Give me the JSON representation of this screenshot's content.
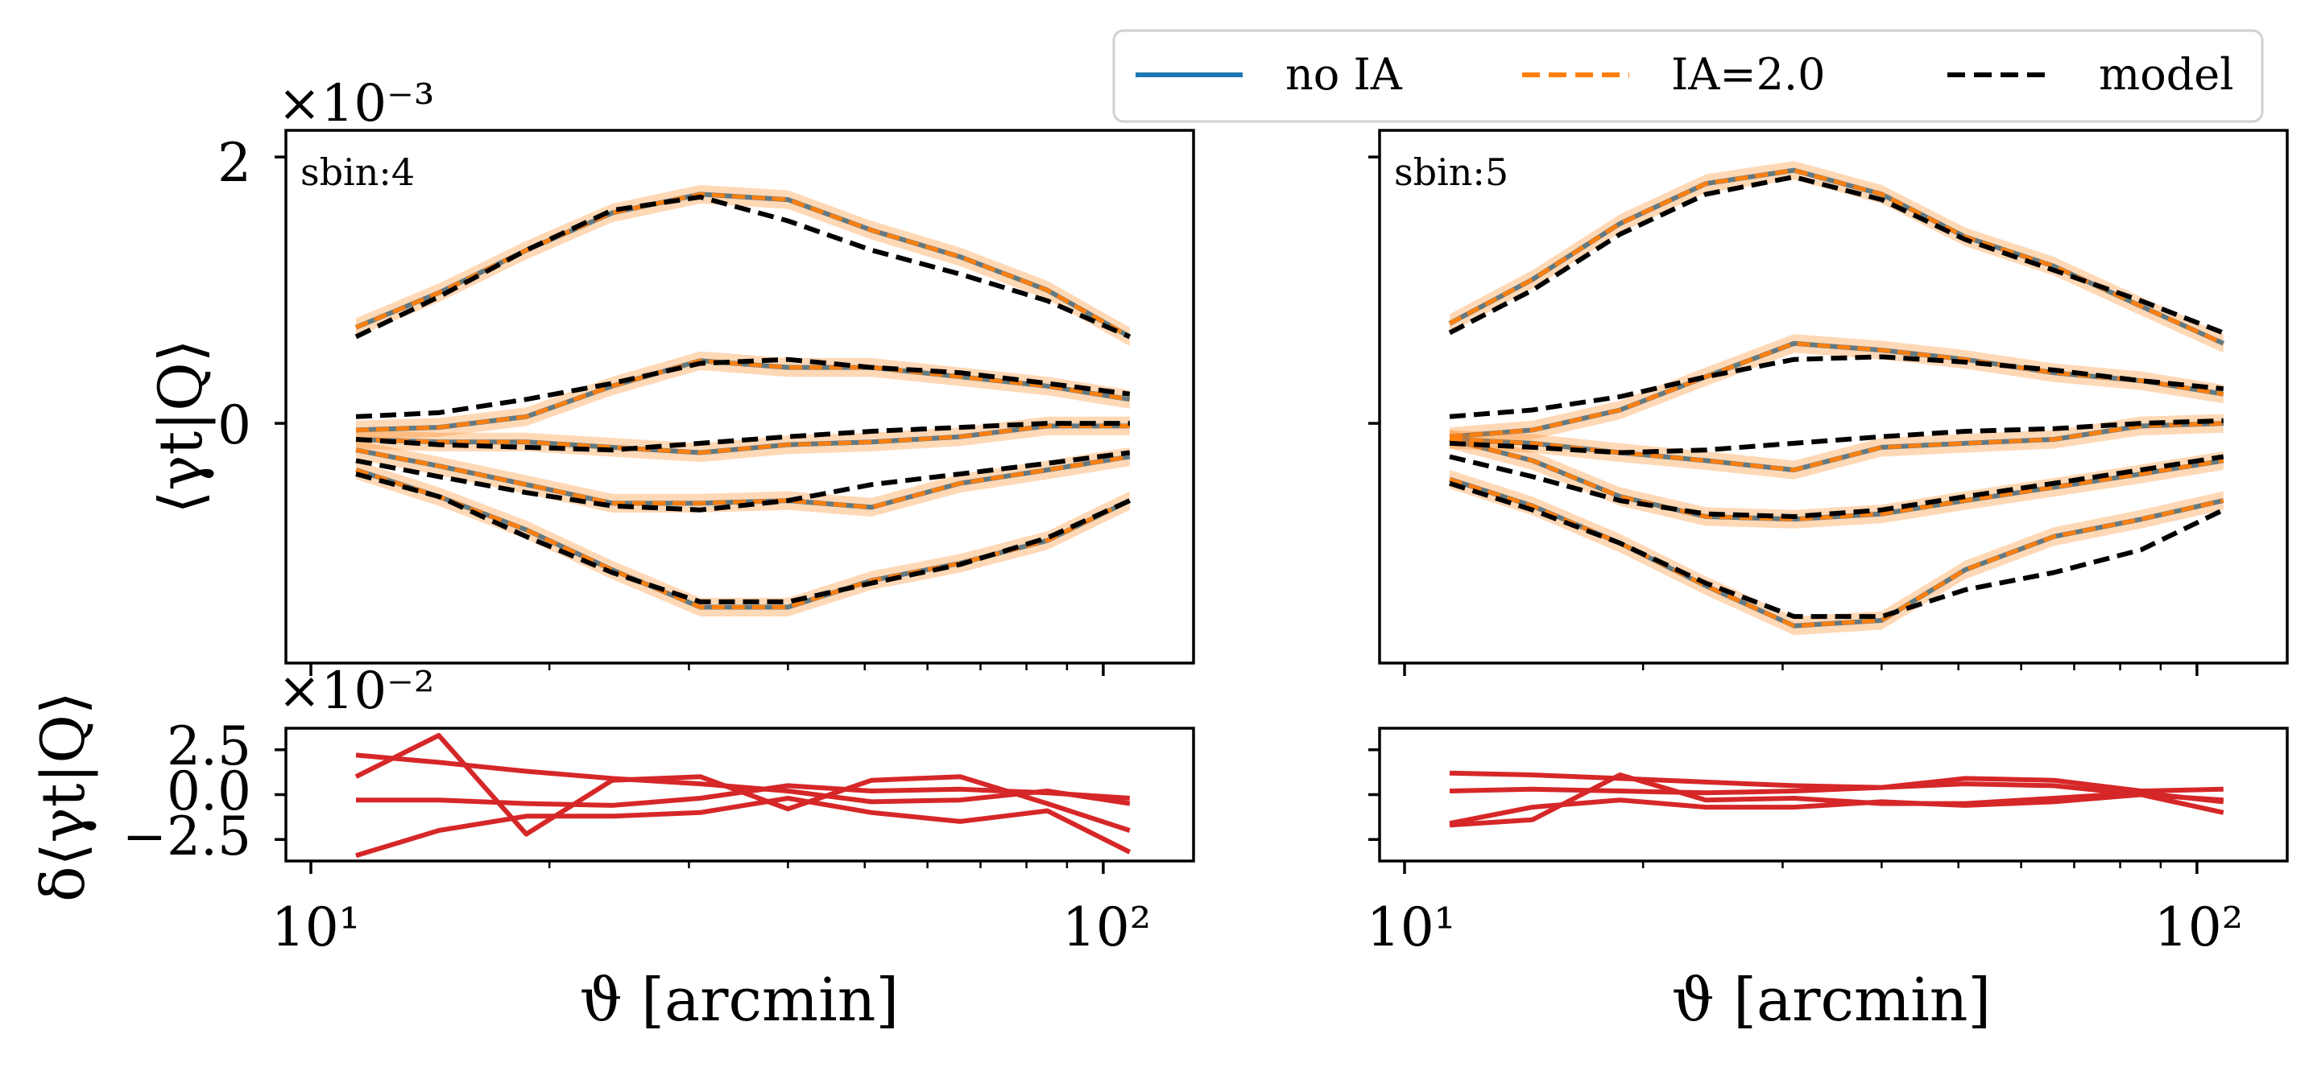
{
  "legend": {
    "entries": [
      {
        "label": "no IA",
        "color": "#1f77b4",
        "style": "solid"
      },
      {
        "label": "IA=2.0",
        "color": "#ff7f0e",
        "style": "dashed"
      },
      {
        "label": "model",
        "color": "#000000",
        "style": "dashed"
      }
    ]
  },
  "labels": {
    "ylabel_top": "⟨γt|Q⟩",
    "ylabel_bottom": "δ⟨γt|Q⟩",
    "xlabel": "ϑ [arcmin]",
    "mult_top": "×10⁻³",
    "mult_bottom": "×10⁻²",
    "x_tick_10": "10¹",
    "x_tick_100": "10²",
    "y_tick_2": "2",
    "y_tick_0": "0",
    "res_tick_p": "2.5",
    "res_tick_0": "0.0",
    "res_tick_m": "−2.5"
  },
  "chart_data": [
    {
      "type": "line",
      "panel": "sbin:4",
      "title": "sbin:4",
      "xscale": "log",
      "xlim": [
        9.3,
        130
      ],
      "ylim": [
        -1.8,
        2.2
      ],
      "x": [
        11.4,
        14.5,
        18.7,
        24,
        31,
        40,
        51,
        66,
        85,
        108
      ],
      "series": [
        {
          "name": "no IA",
          "values": [
            [
              0.72,
              0.98,
              1.3,
              1.58,
              1.72,
              1.68,
              1.45,
              1.25,
              1.0,
              0.65
            ],
            [
              -0.05,
              -0.03,
              0.05,
              0.28,
              0.47,
              0.42,
              0.42,
              0.35,
              0.28,
              0.18
            ],
            [
              -0.12,
              -0.14,
              -0.14,
              -0.18,
              -0.22,
              -0.16,
              -0.14,
              -0.1,
              -0.02,
              -0.02
            ],
            [
              -0.2,
              -0.32,
              -0.46,
              -0.6,
              -0.6,
              -0.58,
              -0.63,
              -0.45,
              -0.35,
              -0.25
            ],
            [
              -0.35,
              -0.55,
              -0.8,
              -1.1,
              -1.38,
              -1.38,
              -1.18,
              -1.05,
              -0.88,
              -0.58
            ]
          ]
        },
        {
          "name": "IA=2.0",
          "band": 0.07,
          "values": [
            [
              0.72,
              0.98,
              1.3,
              1.58,
              1.72,
              1.68,
              1.45,
              1.25,
              1.0,
              0.65
            ],
            [
              -0.05,
              -0.03,
              0.05,
              0.28,
              0.47,
              0.42,
              0.42,
              0.35,
              0.28,
              0.18
            ],
            [
              -0.12,
              -0.14,
              -0.14,
              -0.18,
              -0.22,
              -0.16,
              -0.14,
              -0.1,
              -0.02,
              -0.02
            ],
            [
              -0.2,
              -0.32,
              -0.46,
              -0.6,
              -0.6,
              -0.58,
              -0.63,
              -0.45,
              -0.35,
              -0.25
            ],
            [
              -0.35,
              -0.55,
              -0.8,
              -1.1,
              -1.38,
              -1.38,
              -1.18,
              -1.05,
              -0.88,
              -0.58
            ]
          ]
        },
        {
          "name": "model",
          "values": [
            [
              0.65,
              0.95,
              1.3,
              1.6,
              1.7,
              1.52,
              1.3,
              1.12,
              0.92,
              0.65
            ],
            [
              0.05,
              0.08,
              0.18,
              0.3,
              0.45,
              0.48,
              0.42,
              0.38,
              0.3,
              0.22
            ],
            [
              -0.12,
              -0.16,
              -0.18,
              -0.2,
              -0.15,
              -0.1,
              -0.06,
              -0.03,
              0.0,
              0.0
            ],
            [
              -0.28,
              -0.4,
              -0.52,
              -0.62,
              -0.65,
              -0.58,
              -0.46,
              -0.38,
              -0.3,
              -0.22
            ],
            [
              -0.38,
              -0.55,
              -0.85,
              -1.12,
              -1.34,
              -1.34,
              -1.2,
              -1.06,
              -0.86,
              -0.58
            ]
          ]
        }
      ]
    },
    {
      "type": "line",
      "panel": "sbin:5",
      "title": "sbin:5",
      "xscale": "log",
      "xlim": [
        9.3,
        130
      ],
      "ylim": [
        -1.8,
        2.2
      ],
      "x": [
        11.4,
        14.5,
        18.7,
        24,
        31,
        40,
        51,
        66,
        85,
        108
      ],
      "series": [
        {
          "name": "no IA",
          "values": [
            [
              0.75,
              1.08,
              1.5,
              1.8,
              1.9,
              1.72,
              1.4,
              1.18,
              0.88,
              0.6
            ],
            [
              -0.1,
              -0.05,
              0.1,
              0.35,
              0.6,
              0.55,
              0.48,
              0.38,
              0.32,
              0.22
            ],
            [
              -0.12,
              -0.15,
              -0.22,
              -0.28,
              -0.35,
              -0.18,
              -0.15,
              -0.12,
              -0.02,
              0.0
            ],
            [
              -0.12,
              -0.28,
              -0.55,
              -0.7,
              -0.72,
              -0.68,
              -0.58,
              -0.48,
              -0.38,
              -0.28
            ],
            [
              -0.42,
              -0.62,
              -0.9,
              -1.22,
              -1.52,
              -1.48,
              -1.1,
              -0.85,
              -0.72,
              -0.58
            ]
          ]
        },
        {
          "name": "IA=2.0",
          "band": 0.07,
          "values": [
            [
              0.75,
              1.08,
              1.5,
              1.8,
              1.9,
              1.72,
              1.4,
              1.18,
              0.88,
              0.6
            ],
            [
              -0.1,
              -0.05,
              0.1,
              0.35,
              0.6,
              0.55,
              0.48,
              0.38,
              0.32,
              0.22
            ],
            [
              -0.12,
              -0.15,
              -0.22,
              -0.28,
              -0.35,
              -0.18,
              -0.15,
              -0.12,
              -0.02,
              0.0
            ],
            [
              -0.12,
              -0.28,
              -0.55,
              -0.7,
              -0.72,
              -0.68,
              -0.58,
              -0.48,
              -0.38,
              -0.28
            ],
            [
              -0.42,
              -0.62,
              -0.9,
              -1.22,
              -1.52,
              -1.48,
              -1.1,
              -0.85,
              -0.72,
              -0.58
            ]
          ]
        },
        {
          "name": "model",
          "values": [
            [
              0.68,
              1.0,
              1.42,
              1.72,
              1.85,
              1.68,
              1.38,
              1.15,
              0.92,
              0.68
            ],
            [
              0.05,
              0.1,
              0.2,
              0.35,
              0.48,
              0.5,
              0.46,
              0.4,
              0.32,
              0.26
            ],
            [
              -0.15,
              -0.18,
              -0.22,
              -0.2,
              -0.15,
              -0.1,
              -0.06,
              -0.04,
              0.0,
              0.02
            ],
            [
              -0.25,
              -0.4,
              -0.58,
              -0.68,
              -0.7,
              -0.65,
              -0.55,
              -0.45,
              -0.35,
              -0.25
            ],
            [
              -0.45,
              -0.65,
              -0.9,
              -1.2,
              -1.45,
              -1.45,
              -1.25,
              -1.12,
              -0.95,
              -0.65
            ]
          ]
        }
      ]
    },
    {
      "type": "line",
      "panel": "residual sbin:4",
      "xscale": "log",
      "xlim": [
        9.3,
        130
      ],
      "ylim": [
        -3.7,
        3.7
      ],
      "x": [
        11.4,
        14.5,
        18.7,
        24,
        31,
        40,
        51,
        66,
        85,
        108
      ],
      "series": [
        {
          "name": "residual 1",
          "color": "#d62728",
          "values": [
            2.2,
            1.8,
            1.3,
            0.9,
            0.6,
            0.2,
            -0.4,
            -0.3,
            0.2,
            -0.5
          ]
        },
        {
          "name": "residual 2",
          "color": "#d62728",
          "values": [
            1.0,
            3.3,
            -2.2,
            0.8,
            1.0,
            -0.8,
            0.8,
            1.0,
            -0.5,
            -2.0
          ]
        },
        {
          "name": "residual 3",
          "color": "#d62728",
          "values": [
            -0.3,
            -0.3,
            -0.5,
            -0.6,
            -0.2,
            0.5,
            0.2,
            0.3,
            0.1,
            -0.2
          ]
        },
        {
          "name": "residual 4",
          "color": "#d62728",
          "values": [
            -3.4,
            -2.0,
            -1.2,
            -1.2,
            -1.0,
            -0.2,
            -1.0,
            -1.5,
            -0.9,
            -3.2
          ]
        }
      ]
    },
    {
      "type": "line",
      "panel": "residual sbin:5",
      "xscale": "log",
      "xlim": [
        9.3,
        130
      ],
      "ylim": [
        -3.7,
        3.7
      ],
      "x": [
        11.4,
        14.5,
        18.7,
        24,
        31,
        40,
        51,
        66,
        85,
        108
      ],
      "series": [
        {
          "name": "residual 1",
          "color": "#d62728",
          "values": [
            1.2,
            1.1,
            0.9,
            0.7,
            0.5,
            0.4,
            0.6,
            0.5,
            0.0,
            -1.0
          ]
        },
        {
          "name": "residual 2",
          "color": "#d62728",
          "values": [
            0.2,
            0.3,
            0.2,
            0.1,
            0.2,
            0.4,
            0.9,
            0.8,
            0.2,
            0.3
          ]
        },
        {
          "name": "residual 3",
          "color": "#d62728",
          "values": [
            -1.7,
            -1.4,
            1.1,
            -0.3,
            -0.2,
            -0.5,
            -0.5,
            -0.2,
            0.1,
            -0.4
          ]
        },
        {
          "name": "residual 4",
          "color": "#d62728",
          "values": [
            -1.6,
            -0.7,
            -0.3,
            -0.7,
            -0.7,
            -0.4,
            -0.6,
            -0.4,
            0.0,
            -0.3
          ]
        }
      ]
    }
  ]
}
